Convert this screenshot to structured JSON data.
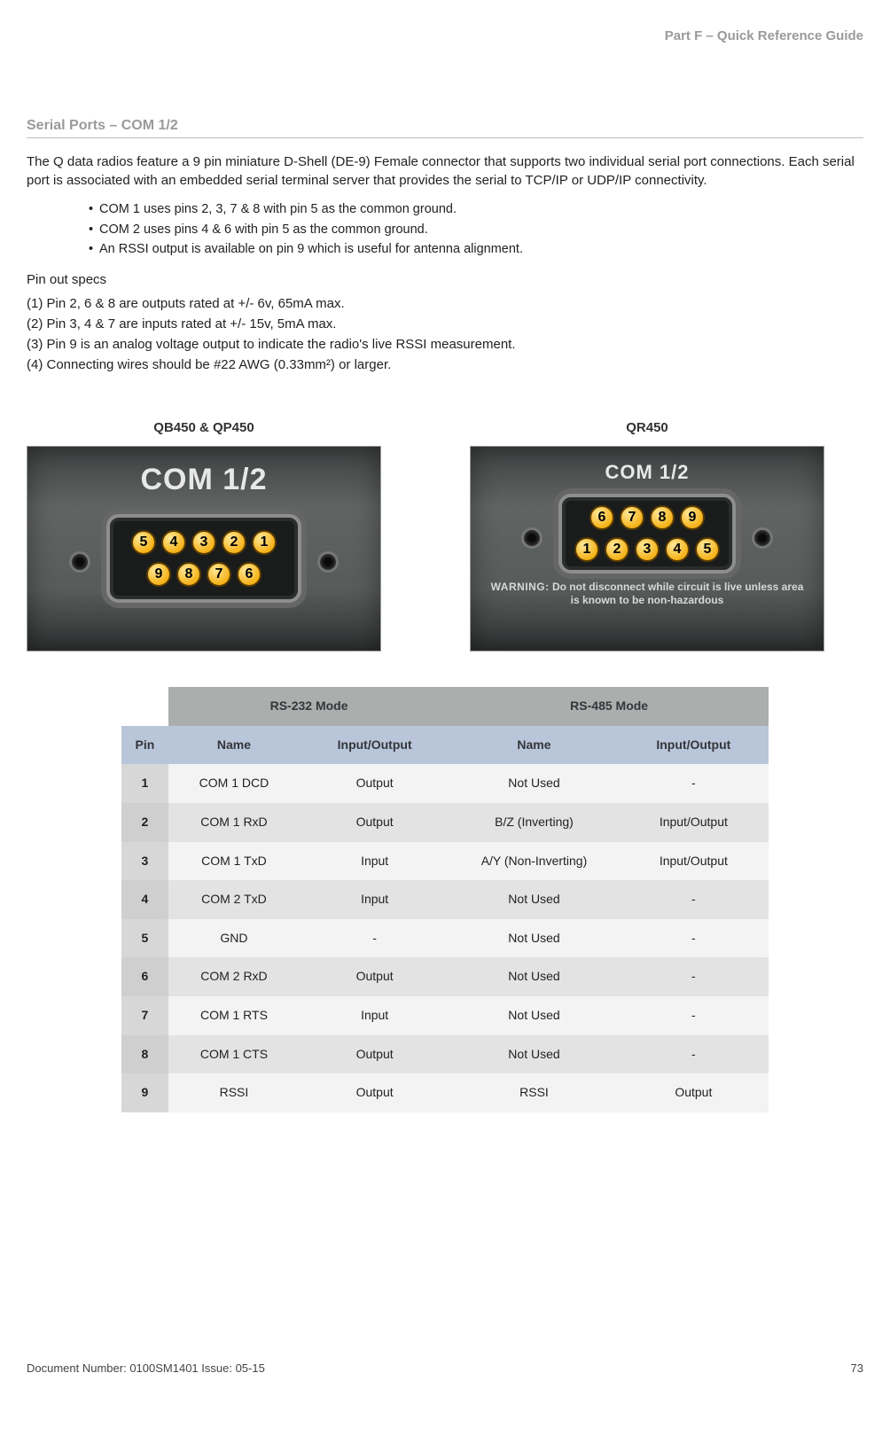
{
  "header": {
    "part_label": "Part F – Quick Reference Guide"
  },
  "section": {
    "title": "Serial Ports – COM 1/2"
  },
  "intro": "The Q data radios feature a 9 pin miniature D-Shell (DE-9) Female connector that supports two individual serial port connections. Each serial port is associated with an embedded serial terminal server that provides the serial to TCP/IP or UDP/IP connectivity.",
  "bullets": [
    "COM 1 uses pins 2, 3, 7 & 8 with pin 5 as the common ground.",
    "COM 2 uses pins 4 & 6 with pin 5 as the common ground.",
    "An RSSI output is available on pin 9 which is useful for antenna alignment."
  ],
  "pinout_title": "Pin out specs",
  "specs": [
    "(1) Pin 2, 6 & 8 are outputs rated at +/- 6v, 65mA max.",
    "(2) Pin 3, 4 & 7 are inputs rated at +/- 15v, 5mA max.",
    "(3) Pin 9 is an analog voltage output to indicate the radio's live RSSI measurement.",
    "(4) Connecting wires should be #22 AWG (0.33mm²) or larger."
  ],
  "diagrams": {
    "left": {
      "label": "QB450 & QP450",
      "com_text": "COM 1/2",
      "top_pins": [
        "5",
        "4",
        "3",
        "2",
        "1"
      ],
      "bottom_pins": [
        "9",
        "8",
        "7",
        "6"
      ]
    },
    "right": {
      "label": "QR450",
      "com_text": "COM 1/2",
      "top_pins": [
        "6",
        "7",
        "8",
        "9"
      ],
      "bottom_pins": [
        "1",
        "2",
        "3",
        "4",
        "5"
      ],
      "warning_title": "WARNING:",
      "warning_body": "Do not disconnect while circuit is live unless area is known to  be non-hazardous"
    }
  },
  "table": {
    "mode_headers": {
      "blank": "",
      "rs232": "RS-232 Mode",
      "rs485": "RS-485 Mode"
    },
    "col_headers": {
      "pin": "Pin",
      "name232": "Name",
      "io232": "Input/Output",
      "name485": "Name",
      "io485": "Input/Output"
    },
    "rows": [
      {
        "pin": "1",
        "n232": "COM 1 DCD",
        "io232": "Output",
        "n485": "Not Used",
        "io485": "-"
      },
      {
        "pin": "2",
        "n232": "COM 1 RxD",
        "io232": "Output",
        "n485": "B/Z (Inverting)",
        "io485": "Input/Output"
      },
      {
        "pin": "3",
        "n232": "COM 1 TxD",
        "io232": "Input",
        "n485": "A/Y (Non-Inverting)",
        "io485": "Input/Output"
      },
      {
        "pin": "4",
        "n232": "COM 2 TxD",
        "io232": "Input",
        "n485": "Not Used",
        "io485": "-"
      },
      {
        "pin": "5",
        "n232": "GND",
        "io232": "-",
        "n485": "Not Used",
        "io485": "-"
      },
      {
        "pin": "6",
        "n232": "COM 2 RxD",
        "io232": "Output",
        "n485": "Not Used",
        "io485": "-"
      },
      {
        "pin": "7",
        "n232": "COM 1 RTS",
        "io232": "Input",
        "n485": "Not Used",
        "io485": "-"
      },
      {
        "pin": "8",
        "n232": "COM 1 CTS",
        "io232": "Output",
        "n485": "Not Used",
        "io485": "-"
      },
      {
        "pin": "9",
        "n232": "RSSI",
        "io232": "Output",
        "n485": "RSSI",
        "io485": "Output"
      }
    ]
  },
  "footer": {
    "doc": "Document Number: 0100SM1401   Issue: 05-15",
    "page": "73"
  }
}
